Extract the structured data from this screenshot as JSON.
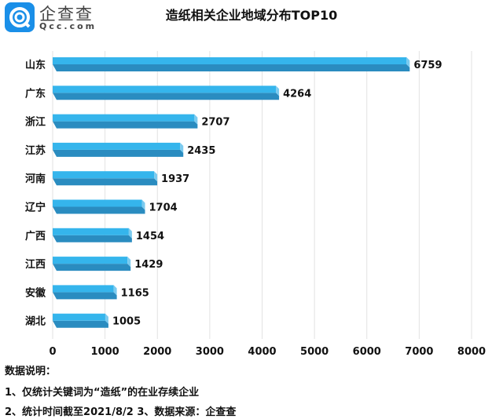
{
  "logo": {
    "name": "企查查",
    "url": "Qcc.com"
  },
  "chart_data": {
    "type": "bar",
    "orientation": "horizontal",
    "title": "造纸相关企业地域分布TOP10",
    "categories": [
      "山东",
      "广东",
      "浙江",
      "江苏",
      "河南",
      "辽宁",
      "广西",
      "江西",
      "安徽",
      "湖北"
    ],
    "values": [
      6759,
      4264,
      2707,
      2435,
      1937,
      1704,
      1454,
      1429,
      1165,
      1005
    ],
    "xlim": [
      0,
      8000
    ],
    "xticks": [
      0,
      1000,
      2000,
      3000,
      4000,
      5000,
      6000,
      7000,
      8000
    ],
    "grid": true,
    "bar_color": "#35b5ec",
    "bar_shade_color": "#2a8cc0"
  },
  "notes": {
    "heading": "数据说明：",
    "line1": "1、仅统计关键词为“造纸”的在业存续企业",
    "line2": "2、统计时间截至2021/8/2  3、数据来源：企查查"
  }
}
